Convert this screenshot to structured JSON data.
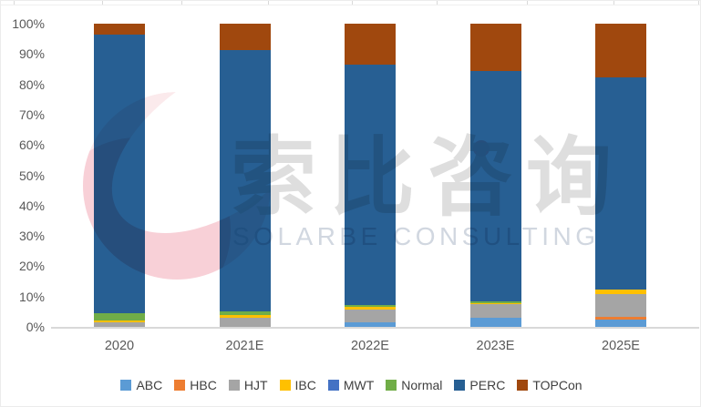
{
  "chart_data": {
    "type": "bar",
    "stacked": true,
    "percent_stacked": true,
    "title": "",
    "xlabel": "",
    "ylabel": "",
    "categories": [
      "2020",
      "2021E",
      "2022E",
      "2023E",
      "2025E"
    ],
    "series": [
      {
        "name": "ABC",
        "color": "#5B9BD5",
        "values": [
          0,
          0,
          1.5,
          2.9,
          2.4
        ]
      },
      {
        "name": "HBC",
        "color": "#ED7D31",
        "values": [
          0,
          0,
          0,
          0,
          1.0
        ]
      },
      {
        "name": "HJT",
        "color": "#A5A5A5",
        "values": [
          1.4,
          3.0,
          4.1,
          4.5,
          7.3
        ]
      },
      {
        "name": "IBC",
        "color": "#FFC000",
        "values": [
          0.8,
          1.0,
          1.0,
          0.5,
          1.7
        ]
      },
      {
        "name": "MWT",
        "color": "#4472C4",
        "values": [
          0,
          0,
          0,
          0,
          0
        ]
      },
      {
        "name": "Normal",
        "color": "#70AD47",
        "values": [
          2.2,
          1.0,
          0.7,
          0.5,
          0
        ]
      },
      {
        "name": "PERC",
        "color": "#275F93",
        "values": [
          91.9,
          86.3,
          79.3,
          75.9,
          70.0
        ]
      },
      {
        "name": "TOPCon",
        "color": "#A0480E",
        "values": [
          3.7,
          8.7,
          13.4,
          15.7,
          17.6
        ]
      }
    ],
    "ylim": [
      0,
      100
    ],
    "y_tick_step": 10,
    "y_tick_labels": [
      "0%",
      "10%",
      "20%",
      "30%",
      "40%",
      "50%",
      "60%",
      "70%",
      "80%",
      "90%",
      "100%"
    ],
    "grid": false,
    "legend_position": "bottom"
  },
  "watermark": {
    "cn": "索比咨询",
    "en": "SOLARBE CONSULTING"
  }
}
